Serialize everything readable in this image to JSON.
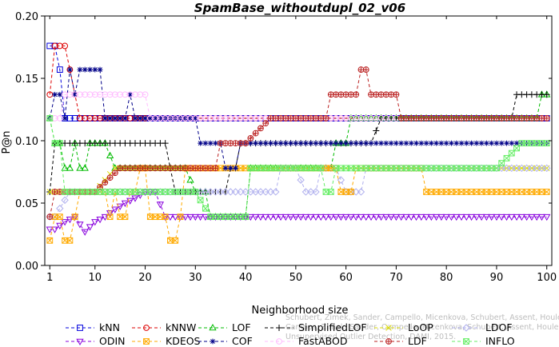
{
  "chart_data": {
    "type": "line",
    "title": "SpamBase_withoutdupl_02_v06",
    "xlabel": "Neighborhood size",
    "ylabel": "P@n",
    "xlim": [
      0,
      101
    ],
    "ylim": [
      0,
      0.2
    ],
    "xticks": [
      1,
      10,
      20,
      30,
      40,
      50,
      60,
      70,
      80,
      90,
      100
    ],
    "yticks": [
      0.0,
      0.05,
      0.1,
      0.15,
      0.2
    ],
    "ytick_labels": [
      "0.00",
      "0.05",
      "0.10",
      "0.15",
      "0.20"
    ],
    "legend_position": "bottom",
    "watermark": [
      "Schubert, Zimek, Sander, Campello, Micenkova, Schubert, Assent, Houle",
      "Campos, Zimek, Sander, Campello, Micenkova, Schubert, Assent, Houle",
      "Unsupervised Outlier Detection, DAMI, 2015."
    ],
    "series": [
      {
        "name": "kNN",
        "color": "#0000dd",
        "marker": "square",
        "keys": [
          [
            1,
            0.176
          ],
          [
            2,
            0.176
          ],
          [
            3,
            0.157
          ],
          [
            4,
            0.118
          ],
          [
            100,
            0.118
          ]
        ]
      },
      {
        "name": "kNNW",
        "color": "#dd0000",
        "marker": "circle",
        "keys": [
          [
            1,
            0.137
          ],
          [
            2,
            0.176
          ],
          [
            3,
            0.176
          ],
          [
            4,
            0.176
          ],
          [
            5,
            0.157
          ],
          [
            6,
            0.137
          ],
          [
            7,
            0.118
          ],
          [
            100,
            0.118
          ]
        ]
      },
      {
        "name": "LOF",
        "color": "#00bb00",
        "marker": "triangle",
        "keys": [
          [
            1,
            0.118
          ],
          [
            2,
            0.098
          ],
          [
            3,
            0.098
          ],
          [
            4,
            0.078
          ],
          [
            5,
            0.078
          ],
          [
            6,
            0.098
          ],
          [
            7,
            0.078
          ],
          [
            8,
            0.078
          ],
          [
            9,
            0.098
          ],
          [
            10,
            0.098
          ],
          [
            11,
            0.098
          ],
          [
            12,
            0.098
          ],
          [
            14,
            0.078
          ],
          [
            20,
            0.078
          ],
          [
            24,
            0.078
          ],
          [
            28,
            0.078
          ],
          [
            30,
            0.059
          ],
          [
            32,
            0.059
          ],
          [
            33,
            0.039
          ],
          [
            40,
            0.039
          ],
          [
            41,
            0.078
          ],
          [
            57,
            0.078
          ],
          [
            58,
            0.098
          ],
          [
            60,
            0.098
          ],
          [
            61,
            0.118
          ],
          [
            98,
            0.118
          ],
          [
            99,
            0.137
          ],
          [
            100,
            0.137
          ]
        ]
      },
      {
        "name": "SimplifiedLOF",
        "color": "#000000",
        "marker": "plus",
        "keys": [
          [
            1,
            0.059
          ],
          [
            2,
            0.098
          ],
          [
            5,
            0.098
          ],
          [
            6,
            0.098
          ],
          [
            24,
            0.098
          ],
          [
            25,
            0.078
          ],
          [
            26,
            0.059
          ],
          [
            36,
            0.059
          ],
          [
            37,
            0.078
          ],
          [
            38,
            0.078
          ],
          [
            39,
            0.098
          ],
          [
            60,
            0.098
          ],
          [
            65,
            0.098
          ],
          [
            67,
            0.118
          ],
          [
            93,
            0.118
          ],
          [
            94,
            0.137
          ],
          [
            100,
            0.137
          ]
        ]
      },
      {
        "name": "LoOP",
        "color": "#dddd00",
        "marker": "x",
        "keys": [
          [
            1,
            0.059
          ],
          [
            2,
            0.059
          ],
          [
            5,
            0.059
          ],
          [
            10,
            0.059
          ],
          [
            14,
            0.078
          ],
          [
            22,
            0.078
          ],
          [
            23,
            0.078
          ],
          [
            33,
            0.078
          ],
          [
            40,
            0.078
          ],
          [
            59,
            0.078
          ],
          [
            100,
            0.078
          ]
        ]
      },
      {
        "name": "LDOF",
        "color": "#b0b0ee",
        "marker": "diamond",
        "keys": [
          [
            1,
            0.039
          ],
          [
            2,
            0.039
          ],
          [
            5,
            0.059
          ],
          [
            10,
            0.059
          ],
          [
            14,
            0.059
          ],
          [
            18,
            0.059
          ],
          [
            22,
            0.059
          ],
          [
            26,
            0.059
          ],
          [
            30,
            0.059
          ],
          [
            34,
            0.059
          ],
          [
            38,
            0.059
          ],
          [
            44,
            0.059
          ],
          [
            46,
            0.059
          ],
          [
            47,
            0.078
          ],
          [
            50,
            0.078
          ],
          [
            52,
            0.059
          ],
          [
            54,
            0.059
          ],
          [
            55,
            0.078
          ],
          [
            57,
            0.078
          ],
          [
            58,
            0.078
          ],
          [
            60,
            0.059
          ],
          [
            63,
            0.059
          ],
          [
            64,
            0.078
          ],
          [
            100,
            0.078
          ]
        ]
      },
      {
        "name": "ODIN",
        "color": "#8800dd",
        "marker": "triangle-down",
        "keys": [
          [
            1,
            0.029
          ],
          [
            2,
            0.029
          ],
          [
            4,
            0.035
          ],
          [
            6,
            0.039
          ],
          [
            8,
            0.027
          ],
          [
            10,
            0.035
          ],
          [
            12,
            0.039
          ],
          [
            14,
            0.045
          ],
          [
            16,
            0.05
          ],
          [
            18,
            0.054
          ],
          [
            20,
            0.059
          ],
          [
            22,
            0.059
          ],
          [
            24,
            0.039
          ],
          [
            100,
            0.039
          ]
        ]
      },
      {
        "name": "KDEOS",
        "color": "#ffaa00",
        "marker": "square-x",
        "keys": [
          [
            1,
            0.02
          ],
          [
            2,
            0.039
          ],
          [
            3,
            0.039
          ],
          [
            4,
            0.02
          ],
          [
            5,
            0.02
          ],
          [
            6,
            0.039
          ],
          [
            7,
            0.059
          ],
          [
            12,
            0.059
          ],
          [
            13,
            0.039
          ],
          [
            14,
            0.059
          ],
          [
            15,
            0.039
          ],
          [
            16,
            0.039
          ],
          [
            17,
            0.059
          ],
          [
            18,
            0.059
          ],
          [
            19,
            0.078
          ],
          [
            20,
            0.078
          ],
          [
            21,
            0.039
          ],
          [
            24,
            0.039
          ],
          [
            25,
            0.02
          ],
          [
            26,
            0.02
          ],
          [
            27,
            0.039
          ],
          [
            28,
            0.078
          ],
          [
            33,
            0.078
          ],
          [
            58,
            0.078
          ],
          [
            59,
            0.059
          ],
          [
            61,
            0.059
          ],
          [
            62,
            0.078
          ],
          [
            75,
            0.078
          ],
          [
            76,
            0.059
          ],
          [
            100,
            0.059
          ]
        ]
      },
      {
        "name": "COF",
        "color": "#000088",
        "marker": "star",
        "keys": [
          [
            1,
            0.118
          ],
          [
            2,
            0.137
          ],
          [
            3,
            0.137
          ],
          [
            4,
            0.118
          ],
          [
            5,
            0.157
          ],
          [
            6,
            0.137
          ],
          [
            7,
            0.157
          ],
          [
            11,
            0.157
          ],
          [
            12,
            0.118
          ],
          [
            16,
            0.118
          ],
          [
            17,
            0.137
          ],
          [
            18,
            0.118
          ],
          [
            30,
            0.118
          ],
          [
            31,
            0.098
          ],
          [
            35,
            0.098
          ],
          [
            36,
            0.078
          ],
          [
            38,
            0.078
          ],
          [
            39,
            0.098
          ],
          [
            100,
            0.098
          ]
        ]
      },
      {
        "name": "FastABOD",
        "color": "#ffbbff",
        "marker": "circle",
        "keys": [
          [
            1,
            0.118
          ],
          [
            3,
            0.118
          ],
          [
            4,
            0.137
          ],
          [
            19,
            0.137
          ],
          [
            20,
            0.137
          ],
          [
            21,
            0.118
          ],
          [
            100,
            0.118
          ]
        ]
      },
      {
        "name": "LDF",
        "color": "#bb2222",
        "marker": "circle-plus",
        "keys": [
          [
            1,
            0.039
          ],
          [
            2,
            0.059
          ],
          [
            10,
            0.059
          ],
          [
            15,
            0.078
          ],
          [
            26,
            0.078
          ],
          [
            27,
            0.078
          ],
          [
            34,
            0.078
          ],
          [
            35,
            0.098
          ],
          [
            40,
            0.098
          ],
          [
            45,
            0.118
          ],
          [
            56,
            0.118
          ],
          [
            57,
            0.137
          ],
          [
            62,
            0.137
          ],
          [
            63,
            0.157
          ],
          [
            64,
            0.157
          ],
          [
            65,
            0.137
          ],
          [
            70,
            0.137
          ],
          [
            71,
            0.118
          ],
          [
            100,
            0.118
          ]
        ]
      },
      {
        "name": "INFLO",
        "color": "#66ee66",
        "marker": "square-x",
        "keys": [
          [
            1,
            0.118
          ],
          [
            2,
            0.098
          ],
          [
            3,
            0.098
          ],
          [
            4,
            0.059
          ],
          [
            5,
            0.059
          ],
          [
            10,
            0.059
          ],
          [
            15,
            0.059
          ],
          [
            20,
            0.059
          ],
          [
            30,
            0.059
          ],
          [
            33,
            0.039
          ],
          [
            40,
            0.039
          ],
          [
            41,
            0.078
          ],
          [
            55,
            0.078
          ],
          [
            56,
            0.059
          ],
          [
            57,
            0.059
          ],
          [
            58,
            0.078
          ],
          [
            70,
            0.078
          ],
          [
            80,
            0.078
          ],
          [
            90,
            0.078
          ],
          [
            95,
            0.098
          ],
          [
            100,
            0.098
          ]
        ]
      }
    ]
  }
}
